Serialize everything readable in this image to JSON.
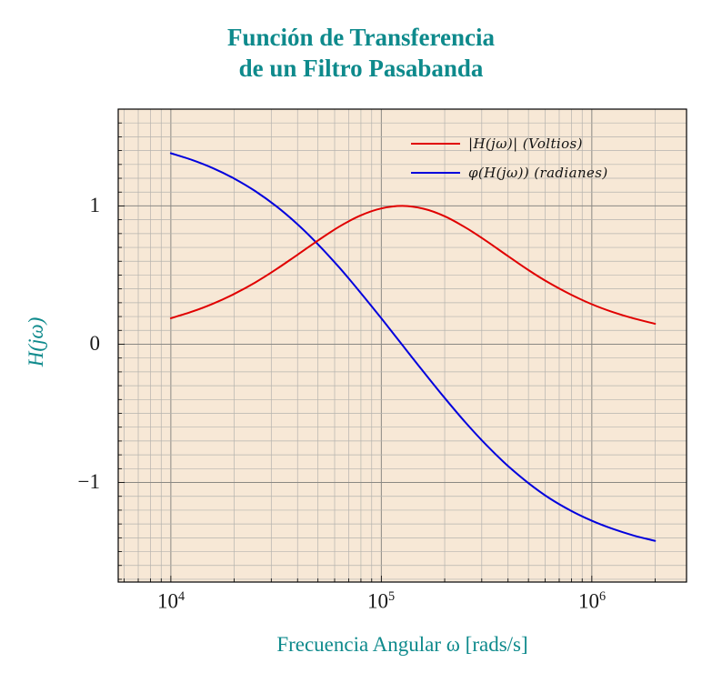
{
  "title": {
    "line1": "Función de Transferencia",
    "line2": "de un Filtro Pasabanda"
  },
  "axes": {
    "x_label": "Frecuencia Angular ω [rads/s]",
    "y_label": "H(jω)",
    "x_ticks": [
      {
        "base": "10",
        "exp": "4"
      },
      {
        "base": "10",
        "exp": "5"
      },
      {
        "base": "10",
        "exp": "6"
      }
    ],
    "y_ticks": [
      "1",
      "0",
      "−1"
    ]
  },
  "legend": {
    "items": [
      {
        "label": "|H(jω)| (Voltios)"
      },
      {
        "label": "φ(H(jω)) (radianes)"
      }
    ]
  },
  "colors": {
    "accent_teal": "#0e8a8c",
    "magnitude_red": "#e00000",
    "phase_blue": "#0000dd",
    "plot_background": "#f7e8d6",
    "grid_minor": "#b5b3ae",
    "grid_major": "#8a8883",
    "axis_frame": "#000000"
  },
  "chart_data": {
    "type": "line",
    "title": "Función de Transferencia de un Filtro Pasabanda",
    "xlabel": "Frecuencia Angular ω [rads/s]",
    "ylabel": "H(jω)",
    "x_scale": "log",
    "grid": "both",
    "legend_position": "top-right inside",
    "xlim": [
      5623,
      2818383
    ],
    "ylim": [
      -1.72,
      1.7
    ],
    "x_tick_values": [
      10000,
      100000,
      1000000
    ],
    "y_tick_values": [
      -1,
      0,
      1
    ],
    "x": [
      10000,
      12589,
      15849,
      19953,
      25119,
      31623,
      39811,
      50119,
      63096,
      79433,
      100000,
      125893,
      158489,
      199526,
      251189,
      316228,
      398107,
      501187,
      630957,
      794328,
      1000000,
      1258925,
      1584893,
      1995262
    ],
    "series": [
      {
        "name": "|H(jω)| (Voltios)",
        "color": "#e00000",
        "values": [
          0.188,
          0.235,
          0.293,
          0.363,
          0.446,
          0.541,
          0.645,
          0.751,
          0.85,
          0.93,
          0.982,
          1.0,
          0.98,
          0.926,
          0.844,
          0.745,
          0.639,
          0.535,
          0.441,
          0.359,
          0.289,
          0.232,
          0.186,
          0.148
        ]
      },
      {
        "name": "φ(H(jω)) (radianes)",
        "color": "#0000dd",
        "values": [
          1.381,
          1.333,
          1.273,
          1.199,
          1.108,
          0.999,
          0.87,
          0.721,
          0.555,
          0.375,
          0.187,
          -0.006,
          -0.199,
          -0.387,
          -0.566,
          -0.731,
          -0.878,
          -1.006,
          -1.115,
          -1.204,
          -1.277,
          -1.336,
          -1.384,
          -1.422
        ]
      }
    ]
  }
}
